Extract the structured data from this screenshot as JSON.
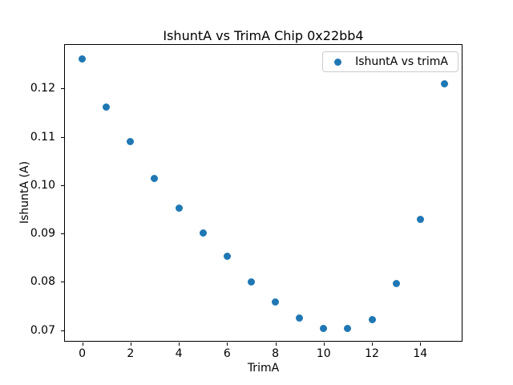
{
  "window": {
    "background": "#ffffff"
  },
  "chart_data": {
    "type": "scatter",
    "title": "IshuntA vs TrimA Chip 0x22bb4",
    "xlabel": "TrimA",
    "ylabel": "IshuntA (A)",
    "x": [
      0,
      1,
      2,
      3,
      4,
      5,
      6,
      7,
      8,
      9,
      10,
      11,
      12,
      13,
      14,
      15
    ],
    "y": [
      0.1261,
      0.1161,
      0.1091,
      0.1014,
      0.0952,
      0.0901,
      0.0853,
      0.08,
      0.0758,
      0.0725,
      0.0703,
      0.0703,
      0.0722,
      0.0796,
      0.093,
      0.1209
    ],
    "series_name": "IshuntA vs trimA",
    "marker": "circle",
    "marker_color": "#1f77b4",
    "xlim": [
      -0.75,
      15.75
    ],
    "ylim": [
      0.0676,
      0.1292
    ],
    "x_ticks": [
      0,
      2,
      4,
      6,
      8,
      10,
      12,
      14
    ],
    "y_ticks": [
      0.07,
      0.08,
      0.09,
      0.1,
      0.11,
      0.12
    ],
    "grid": false,
    "legend": {
      "label": "IshuntA vs trimA",
      "position": "upper right",
      "frame_color": "#cccccc"
    }
  }
}
